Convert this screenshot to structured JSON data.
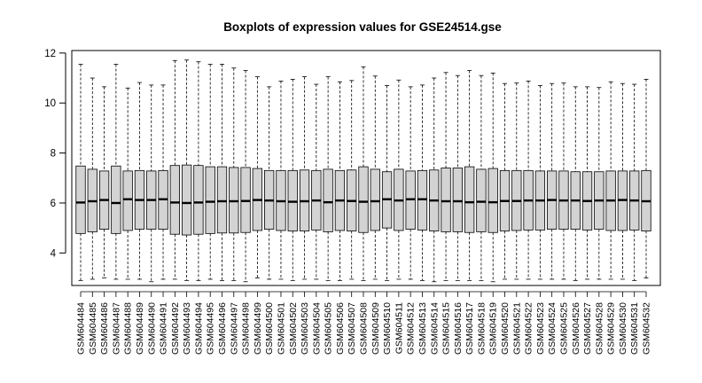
{
  "chart_data": {
    "type": "boxplot",
    "title": "Boxplots of expression values for GSE24514.gse",
    "xlabel": "",
    "ylabel": "",
    "ylim": [
      2.7,
      12.1
    ],
    "yticks": [
      4,
      6,
      8,
      10,
      12
    ],
    "grid": false,
    "legend": "none",
    "box_color": "#d3d3d3",
    "categories": [
      "GSM604484",
      "GSM604485",
      "GSM604486",
      "GSM604487",
      "GSM604488",
      "GSM604489",
      "GSM604490",
      "GSM604491",
      "GSM604492",
      "GSM604493",
      "GSM604494",
      "GSM604495",
      "GSM604496",
      "GSM604497",
      "GSM604498",
      "GSM604499",
      "GSM604500",
      "GSM604501",
      "GSM604502",
      "GSM604503",
      "GSM604504",
      "GSM604505",
      "GSM604506",
      "GSM604507",
      "GSM604508",
      "GSM604509",
      "GSM604510",
      "GSM604511",
      "GSM604512",
      "GSM604513",
      "GSM604514",
      "GSM604515",
      "GSM604516",
      "GSM604517",
      "GSM604518",
      "GSM604519",
      "GSM604520",
      "GSM604521",
      "GSM604522",
      "GSM604523",
      "GSM604524",
      "GSM604525",
      "GSM604526",
      "GSM604527",
      "GSM604528",
      "GSM604529",
      "GSM604530",
      "GSM604531",
      "GSM604532"
    ],
    "whisker_low": [
      2.9,
      2.95,
      3.0,
      2.95,
      2.95,
      2.95,
      2.85,
      2.95,
      2.95,
      2.9,
      2.9,
      2.95,
      2.9,
      2.9,
      2.85,
      3.0,
      2.95,
      2.95,
      2.9,
      2.95,
      2.95,
      2.9,
      2.9,
      2.95,
      2.9,
      2.95,
      2.9,
      2.95,
      2.95,
      2.9,
      2.85,
      2.9,
      2.9,
      2.9,
      2.9,
      2.85,
      2.95,
      2.95,
      2.95,
      2.95,
      2.95,
      2.95,
      2.9,
      2.95,
      2.95,
      2.95,
      2.95,
      2.9,
      3.0
    ],
    "q1": [
      4.78,
      4.85,
      4.95,
      4.78,
      4.9,
      4.95,
      4.95,
      4.95,
      4.75,
      4.72,
      4.75,
      4.78,
      4.8,
      4.8,
      4.82,
      4.9,
      4.95,
      4.9,
      4.88,
      4.88,
      4.92,
      4.85,
      4.9,
      4.88,
      4.82,
      4.9,
      5.0,
      4.9,
      4.95,
      4.92,
      4.88,
      4.85,
      4.85,
      4.82,
      4.85,
      4.82,
      4.88,
      4.9,
      4.92,
      4.92,
      4.95,
      4.95,
      4.95,
      4.92,
      4.95,
      4.9,
      4.9,
      4.92,
      4.88
    ],
    "median": [
      6.02,
      6.07,
      6.12,
      6.0,
      6.15,
      6.12,
      6.12,
      6.15,
      6.02,
      6.0,
      6.02,
      6.05,
      6.07,
      6.07,
      6.08,
      6.12,
      6.1,
      6.07,
      6.05,
      6.07,
      6.1,
      6.03,
      6.1,
      6.08,
      6.05,
      6.07,
      6.15,
      6.1,
      6.15,
      6.15,
      6.1,
      6.07,
      6.07,
      6.03,
      6.05,
      6.03,
      6.08,
      6.08,
      6.1,
      6.1,
      6.12,
      6.1,
      6.1,
      6.08,
      6.1,
      6.1,
      6.12,
      6.1,
      6.07
    ],
    "q3": [
      7.48,
      7.35,
      7.28,
      7.48,
      7.28,
      7.3,
      7.28,
      7.3,
      7.5,
      7.52,
      7.5,
      7.45,
      7.45,
      7.42,
      7.42,
      7.38,
      7.3,
      7.3,
      7.3,
      7.32,
      7.3,
      7.35,
      7.3,
      7.32,
      7.45,
      7.35,
      7.25,
      7.35,
      7.28,
      7.3,
      7.32,
      7.4,
      7.4,
      7.45,
      7.35,
      7.38,
      7.3,
      7.3,
      7.3,
      7.28,
      7.28,
      7.28,
      7.25,
      7.25,
      7.25,
      7.28,
      7.28,
      7.28,
      7.3
    ],
    "whisker_high": [
      11.55,
      11.0,
      10.65,
      11.55,
      10.6,
      10.82,
      10.72,
      10.72,
      11.7,
      11.72,
      11.65,
      11.55,
      11.55,
      11.4,
      11.3,
      11.05,
      10.65,
      10.88,
      10.95,
      11.05,
      10.75,
      11.05,
      10.85,
      10.9,
      11.45,
      11.08,
      10.7,
      10.92,
      10.65,
      10.72,
      11.0,
      11.22,
      11.1,
      11.3,
      11.1,
      11.2,
      10.78,
      10.8,
      10.88,
      10.7,
      10.78,
      10.8,
      10.65,
      10.65,
      10.62,
      10.85,
      10.78,
      10.75,
      10.95
    ]
  }
}
